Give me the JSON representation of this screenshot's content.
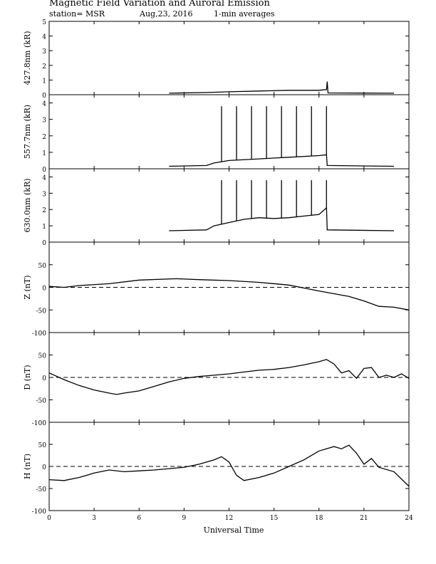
{
  "header": {
    "title": "Magnetic Field Variation and Auroral Emission",
    "station": "station= MSR",
    "date": "Aug,23, 2016",
    "averaging": "1-min averages"
  },
  "chart_data": [
    {
      "type": "line",
      "ylabel": "427.8nm (kR)",
      "ylim": [
        0,
        5
      ],
      "yticks": [
        "0",
        "1",
        "2",
        "3",
        "4",
        "5"
      ],
      "series": [
        {
          "x": [
            8,
            10.5,
            12,
            14,
            16,
            18,
            18.5,
            18.55,
            18.6,
            23
          ],
          "y": [
            0.1,
            0.15,
            0.2,
            0.25,
            0.3,
            0.3,
            0.35,
            0.9,
            0.12,
            0.1
          ]
        }
      ]
    },
    {
      "type": "line",
      "ylabel": "557.7nm (kR)",
      "ylim": [
        0,
        4.5
      ],
      "yticks": [
        "0",
        "1",
        "2",
        "3",
        "4"
      ],
      "series": [
        {
          "x": [
            8,
            10.5,
            11,
            12,
            14,
            16,
            18,
            18.5,
            18.55,
            23
          ],
          "y": [
            0.15,
            0.2,
            0.35,
            0.5,
            0.6,
            0.7,
            0.8,
            0.85,
            0.2,
            0.15
          ],
          "spikes": {
            "x": [
              11.5,
              12.5,
              13.5,
              14.5,
              15.5,
              16.5,
              17.5,
              18.5
            ],
            "y": 3.8
          }
        }
      ]
    },
    {
      "type": "line",
      "ylabel": "630.0nm (kR)",
      "ylim": [
        0,
        4.5
      ],
      "yticks": [
        "0",
        "1",
        "2",
        "3",
        "4"
      ],
      "series": [
        {
          "x": [
            8,
            10.5,
            11,
            12,
            13,
            14,
            15,
            16,
            17,
            18,
            18.5,
            18.55,
            23
          ],
          "y": [
            0.7,
            0.75,
            1.0,
            1.2,
            1.4,
            1.5,
            1.45,
            1.5,
            1.6,
            1.7,
            2.1,
            0.75,
            0.7
          ],
          "spikes": {
            "x": [
              11.5,
              12.5,
              13.5,
              14.5,
              15.5,
              16.5,
              17.5,
              18.5
            ],
            "y": 3.8
          }
        }
      ]
    },
    {
      "type": "line",
      "ylabel": "Z (nT)",
      "ylim": [
        -100,
        100
      ],
      "yticks": [
        "-100",
        "-50",
        "0",
        "50"
      ],
      "zero_line": "dashed",
      "series": [
        {
          "x": [
            0,
            1,
            2,
            4,
            6,
            8.5,
            10,
            12,
            14,
            16,
            18,
            20,
            21,
            22,
            23,
            24
          ],
          "y": [
            2,
            0,
            4,
            8,
            16,
            19,
            17,
            15,
            11,
            5,
            -8,
            -20,
            -30,
            -42,
            -44,
            -50
          ]
        }
      ]
    },
    {
      "type": "line",
      "ylabel": "D (nT)",
      "ylim": [
        -100,
        100
      ],
      "yticks": [
        "-100",
        "-50",
        "0",
        "50"
      ],
      "zero_line": "dashed",
      "series": [
        {
          "x": [
            0,
            1,
            2,
            3,
            4,
            4.5,
            5,
            6,
            7,
            8,
            9,
            10,
            11,
            12,
            13,
            14,
            15,
            16,
            17,
            18,
            18.5,
            19,
            19.5,
            20,
            20.5,
            21,
            21.5,
            22,
            22.5,
            23,
            23.5,
            24
          ],
          "y": [
            10,
            -5,
            -18,
            -28,
            -35,
            -38,
            -35,
            -30,
            -20,
            -10,
            -2,
            2,
            5,
            8,
            12,
            16,
            18,
            22,
            28,
            35,
            40,
            30,
            10,
            15,
            -2,
            20,
            22,
            0,
            5,
            0,
            8,
            -2
          ]
        }
      ]
    },
    {
      "type": "line",
      "ylabel": "H (nT)",
      "ylim": [
        -100,
        100
      ],
      "yticks": [
        "-100",
        "-50",
        "0",
        "50"
      ],
      "zero_line": "dashed",
      "series": [
        {
          "x": [
            0,
            1,
            2,
            3,
            4,
            5,
            6,
            7,
            8,
            9,
            10,
            11,
            11.5,
            12,
            12.5,
            13,
            14,
            15,
            16,
            17,
            18,
            19,
            19.5,
            20,
            20.5,
            21,
            21.5,
            22,
            23,
            24
          ],
          "y": [
            -30,
            -32,
            -25,
            -15,
            -8,
            -12,
            -10,
            -8,
            -5,
            -2,
            5,
            15,
            22,
            10,
            -20,
            -32,
            -25,
            -15,
            0,
            15,
            35,
            45,
            40,
            48,
            30,
            5,
            18,
            -2,
            -12,
            -45
          ]
        }
      ]
    }
  ],
  "xaxis": {
    "label": "Universal Time",
    "xlim": [
      0,
      24
    ],
    "ticks": [
      "0",
      "3",
      "6",
      "9",
      "12",
      "15",
      "18",
      "21",
      "24"
    ]
  }
}
